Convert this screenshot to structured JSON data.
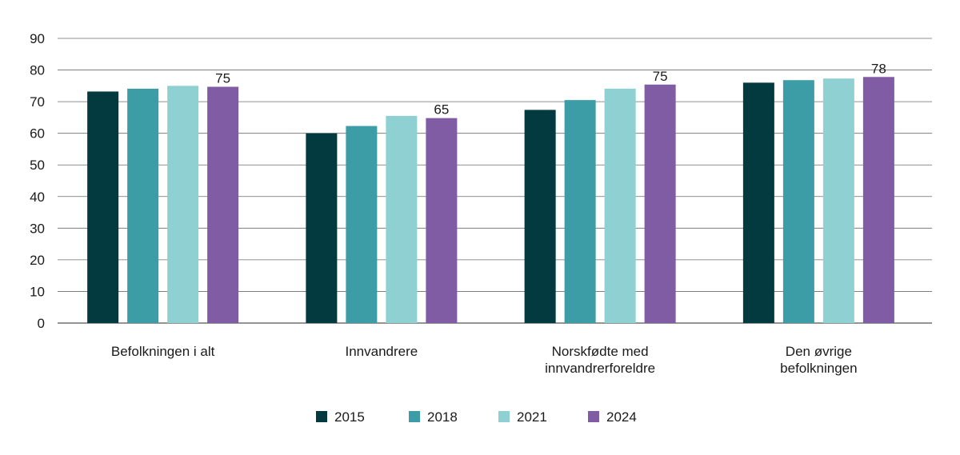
{
  "chart_data": {
    "type": "bar",
    "categories": [
      [
        "Befolkningen i alt"
      ],
      [
        "Innvandrere"
      ],
      [
        "Norskfødte med",
        "innvandrerforeldre"
      ],
      [
        "Den øvrige",
        "befolkningen"
      ]
    ],
    "series": [
      {
        "name": "2015",
        "color": "#023a40",
        "values": [
          73.2,
          60.0,
          67.4,
          76.0
        ]
      },
      {
        "name": "2018",
        "color": "#3d9da6",
        "values": [
          74.1,
          62.3,
          70.5,
          76.8
        ]
      },
      {
        "name": "2021",
        "color": "#8fd0d3",
        "values": [
          75.0,
          65.5,
          74.1,
          77.3
        ]
      },
      {
        "name": "2024",
        "color": "#7f5ca4",
        "values": [
          74.7,
          64.8,
          75.4,
          77.8
        ]
      }
    ],
    "data_labels": [
      {
        "series": "2024",
        "category_index": 0,
        "text": "75"
      },
      {
        "series": "2024",
        "category_index": 1,
        "text": "65"
      },
      {
        "series": "2024",
        "category_index": 2,
        "text": "75"
      },
      {
        "series": "2024",
        "category_index": 3,
        "text": "78"
      }
    ],
    "yticks": [
      "0",
      "10",
      "20",
      "30",
      "40",
      "50",
      "60",
      "70",
      "80",
      "90"
    ],
    "ylim": [
      0,
      90
    ],
    "grid": true,
    "legend_position": "bottom-center",
    "title": "",
    "xlabel": "",
    "ylabel": ""
  }
}
